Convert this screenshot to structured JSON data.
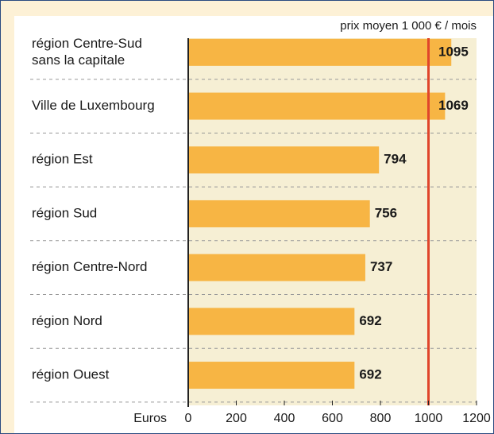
{
  "chart_data": {
    "type": "bar",
    "orientation": "horizontal",
    "annotation": "prix moyen 1 000 € / mois",
    "xlabel": "Euros",
    "categories": [
      [
        "région Centre-Sud",
        "sans la capitale"
      ],
      "Ville de Luxembourg",
      "région Est",
      "région Sud",
      "région Centre-Nord",
      "région Nord",
      "région Ouest"
    ],
    "values": [
      1095,
      1069,
      794,
      756,
      737,
      692,
      692
    ],
    "color": "#f7b544",
    "xlim": [
      0,
      1200
    ],
    "xticks": [
      0,
      200,
      400,
      600,
      800,
      1000,
      1200
    ],
    "reference_line": {
      "value": 1000,
      "color": "#e0452b"
    }
  }
}
